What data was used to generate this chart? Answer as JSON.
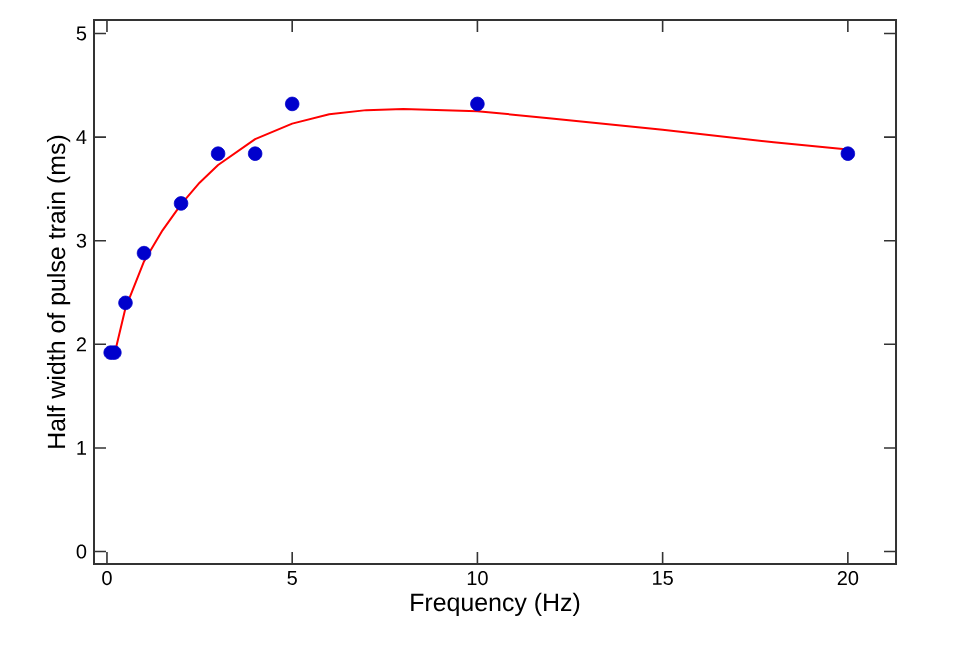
{
  "chart_data": {
    "type": "scatter",
    "xlabel": "Frequency (Hz)",
    "ylabel": "Half width of pulse train (ms)",
    "xlim": [
      -0.35,
      21.3
    ],
    "ylim": [
      -0.12,
      5.13
    ],
    "xticks": [
      0,
      5,
      10,
      15,
      20
    ],
    "yticks": [
      0,
      1,
      2,
      3,
      4,
      5
    ],
    "grid": false,
    "series": [
      {
        "color": "#0000cc",
        "marker": "circle",
        "x": [
          0.1,
          0.2,
          0.5,
          1,
          2,
          3,
          4,
          5,
          10,
          20
        ],
        "values": [
          1.92,
          1.92,
          2.4,
          2.88,
          3.36,
          3.84,
          3.84,
          4.32,
          4.32,
          3.84
        ]
      },
      {
        "type": "line",
        "color": "#ff0000",
        "marker": "none",
        "line_style": "solid",
        "x": [
          0.2,
          0.5,
          1,
          1.5,
          2,
          2.5,
          3,
          4,
          5,
          6,
          7,
          8,
          10,
          12,
          15,
          18,
          20
        ],
        "values": [
          1.9,
          2.35,
          2.8,
          3.1,
          3.35,
          3.56,
          3.73,
          3.98,
          4.13,
          4.22,
          4.26,
          4.27,
          4.25,
          4.18,
          4.07,
          3.95,
          3.88
        ]
      }
    ]
  }
}
